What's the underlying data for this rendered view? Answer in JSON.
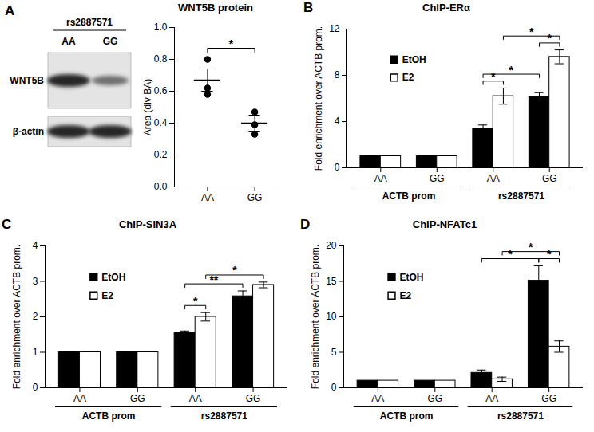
{
  "chart_data": [
    {
      "type": "blot",
      "panel": "A",
      "title": "rs2887571",
      "lanes": [
        "AA",
        "GG"
      ],
      "bands": [
        "WNT5B",
        "β-actin"
      ]
    },
    {
      "type": "scatter",
      "title": "WNT5B protein",
      "y_label": "Area (div BA)",
      "categories": [
        "AA",
        "GG"
      ],
      "points": [
        [
          0.8,
          0.62,
          0.58
        ],
        [
          0.47,
          0.39,
          0.33
        ]
      ],
      "means": [
        0.67,
        0.4
      ],
      "errors": [
        0.07,
        0.05
      ],
      "color": "#000000",
      "ylim": [
        0,
        1
      ],
      "yticks": [
        {
          "value": 0,
          "label": "0.0"
        },
        {
          "value": 0.2,
          "label": "0.2"
        },
        {
          "value": 0.4,
          "label": "0.4"
        },
        {
          "value": 0.6,
          "label": "0.6"
        },
        {
          "value": 0.8,
          "label": "0.8"
        },
        {
          "value": 1,
          "label": "1.0"
        }
      ],
      "significance": [
        {
          "from": "AA",
          "to": "GG",
          "label": "*"
        }
      ]
    },
    {
      "type": "bar",
      "panel": "B",
      "title": "ChIP-ERα",
      "y_label": "Fold enrichment over ACTB prom.",
      "categories": [
        "AA",
        "GG",
        "AA",
        "GG"
      ],
      "x_groups": [
        "ACTB prom",
        "ACTB prom",
        "rs2887571",
        "rs2887571"
      ],
      "series": [
        {
          "name": "EtOH",
          "color": "#000000",
          "values": [
            1,
            1,
            3.4,
            6.1
          ],
          "errors": [
            0,
            0,
            0.3,
            0.4
          ]
        },
        {
          "name": "E2",
          "color": "#ffffff",
          "values": [
            1,
            1,
            6.2,
            9.6
          ],
          "errors": [
            0,
            0,
            0.7,
            0.6
          ]
        }
      ],
      "ylim": [
        0,
        12
      ],
      "yticks": [
        0,
        4,
        8,
        12
      ],
      "legend": "top-left",
      "significance": [
        {
          "from": {
            "group": "rs2887571",
            "category": "AA",
            "series": "EtOH"
          },
          "to": {
            "group": "rs2887571",
            "category": "AA",
            "series": "E2"
          },
          "label": "*"
        },
        {
          "from": {
            "group": "rs2887571",
            "category": "GG",
            "series": "EtOH"
          },
          "to": {
            "group": "rs2887571",
            "category": "GG",
            "series": "E2"
          },
          "label": "*"
        },
        {
          "from": {
            "group": "rs2887571",
            "category": "AA",
            "series": "EtOH"
          },
          "to": {
            "group": "rs2887571",
            "category": "GG",
            "series": "EtOH"
          },
          "label": "*"
        },
        {
          "from": {
            "group": "rs2887571",
            "category": "AA",
            "series": "E2"
          },
          "to": {
            "group": "rs2887571",
            "category": "GG",
            "series": "E2"
          },
          "label": "*"
        }
      ]
    },
    {
      "type": "bar",
      "panel": "C",
      "title": "ChIP-SIN3A",
      "y_label": "Fold enrichment over ACTB prom.",
      "categories": [
        "AA",
        "GG",
        "AA",
        "GG"
      ],
      "x_groups": [
        "ACTB prom",
        "ACTB prom",
        "rs2887571",
        "rs2887571"
      ],
      "series": [
        {
          "name": "EtOH",
          "color": "#000000",
          "values": [
            1,
            1,
            1.55,
            2.58
          ],
          "errors": [
            0,
            0,
            0.05,
            0.15
          ]
        },
        {
          "name": "E2",
          "color": "#ffffff",
          "values": [
            1,
            1,
            2.0,
            2.9
          ],
          "errors": [
            0,
            0,
            0.12,
            0.08
          ]
        }
      ],
      "ylim": [
        0,
        4
      ],
      "yticks": [
        0,
        1,
        2,
        3,
        4
      ],
      "legend": "top-left",
      "significance": [
        {
          "from": {
            "group": "rs2887571",
            "category": "AA",
            "series": "EtOH"
          },
          "to": {
            "group": "rs2887571",
            "category": "AA",
            "series": "E2"
          },
          "label": "*"
        },
        {
          "from": {
            "group": "rs2887571",
            "category": "AA",
            "series": "EtOH"
          },
          "to": {
            "group": "rs2887571",
            "category": "GG",
            "series": "EtOH"
          },
          "label": "**"
        },
        {
          "from": {
            "group": "rs2887571",
            "category": "AA",
            "series": "E2"
          },
          "to": {
            "group": "rs2887571",
            "category": "GG",
            "series": "E2"
          },
          "label": "*"
        }
      ]
    },
    {
      "type": "bar",
      "panel": "D",
      "title": "ChIP-NFATc1",
      "y_label": "Fold enrichment over ACTB prom.",
      "categories": [
        "AA",
        "GG",
        "AA",
        "GG"
      ],
      "x_groups": [
        "ACTB prom",
        "ACTB prom",
        "rs2887571",
        "rs2887571"
      ],
      "series": [
        {
          "name": "EtOH",
          "color": "#000000",
          "values": [
            1,
            1,
            2.1,
            15.1
          ],
          "errors": [
            0,
            0,
            0.4,
            2.1
          ]
        },
        {
          "name": "E2",
          "color": "#ffffff",
          "values": [
            1,
            1,
            1.2,
            5.8
          ],
          "errors": [
            0,
            0,
            0.3,
            0.8
          ]
        }
      ],
      "ylim": [
        0,
        20
      ],
      "yticks": [
        0,
        5,
        10,
        15,
        20
      ],
      "legend": "top-left",
      "significance": [
        {
          "from": {
            "group": "rs2887571",
            "category": "GG",
            "series": "EtOH"
          },
          "to": {
            "group": "rs2887571",
            "category": "GG",
            "series": "E2"
          },
          "label": "*"
        },
        {
          "from": {
            "group": "rs2887571",
            "category": "AA",
            "series": "EtOH"
          },
          "to": {
            "group": "rs2887571",
            "category": "GG",
            "series": "EtOH"
          },
          "label": "*"
        },
        {
          "from": {
            "group": "rs2887571",
            "category": "AA",
            "series": "E2"
          },
          "to": {
            "group": "rs2887571",
            "category": "GG",
            "series": "E2"
          },
          "label": "*"
        }
      ]
    }
  ]
}
